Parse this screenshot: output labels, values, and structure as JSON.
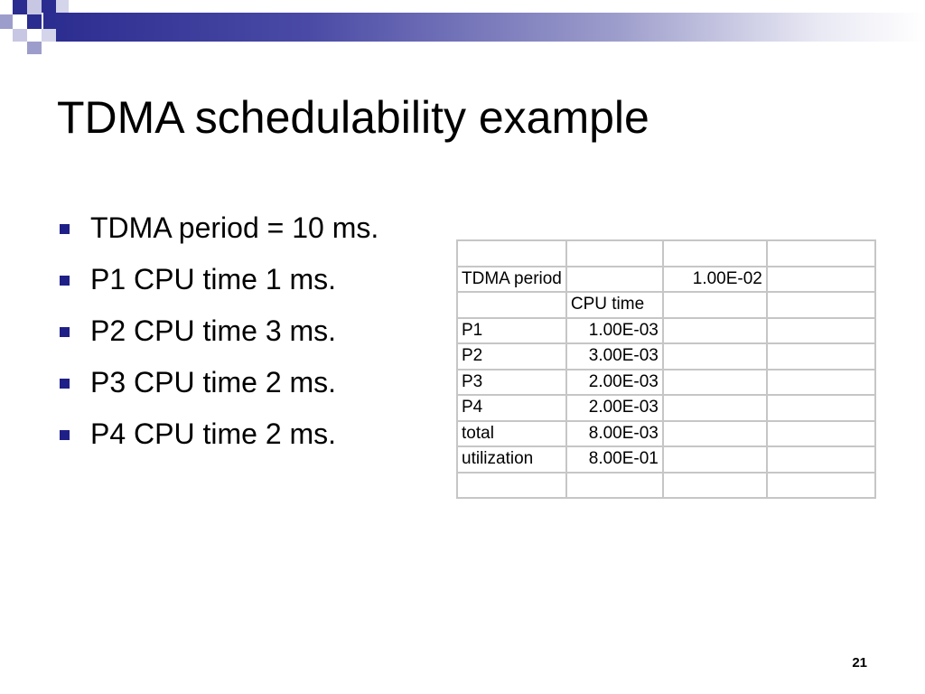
{
  "slide": {
    "title": "TDMA schedulability example",
    "page_number": "21",
    "bullets": [
      "TDMA period = 10 ms.",
      "P1 CPU time 1 ms.",
      "P2 CPU time 3 ms.",
      "P3 CPU time 2 ms.",
      "P4 CPU time 2 ms."
    ],
    "table": {
      "rows": [
        [
          "",
          "",
          "",
          ""
        ],
        [
          "TDMA period",
          "",
          "1.00E-02",
          ""
        ],
        [
          "",
          "CPU time",
          "",
          ""
        ],
        [
          "P1",
          "1.00E-03",
          "",
          ""
        ],
        [
          "P2",
          "3.00E-03",
          "",
          ""
        ],
        [
          "P3",
          "2.00E-03",
          "",
          ""
        ],
        [
          "P4",
          "2.00E-03",
          "",
          ""
        ],
        [
          "total",
          "8.00E-03",
          "",
          ""
        ],
        [
          "utilization",
          "8.00E-01",
          "",
          ""
        ],
        [
          "",
          "",
          "",
          ""
        ]
      ]
    }
  },
  "colors": {
    "accent": "#2b2c8f",
    "bullet": "#1f2087",
    "grid": "#c6c6c6"
  }
}
